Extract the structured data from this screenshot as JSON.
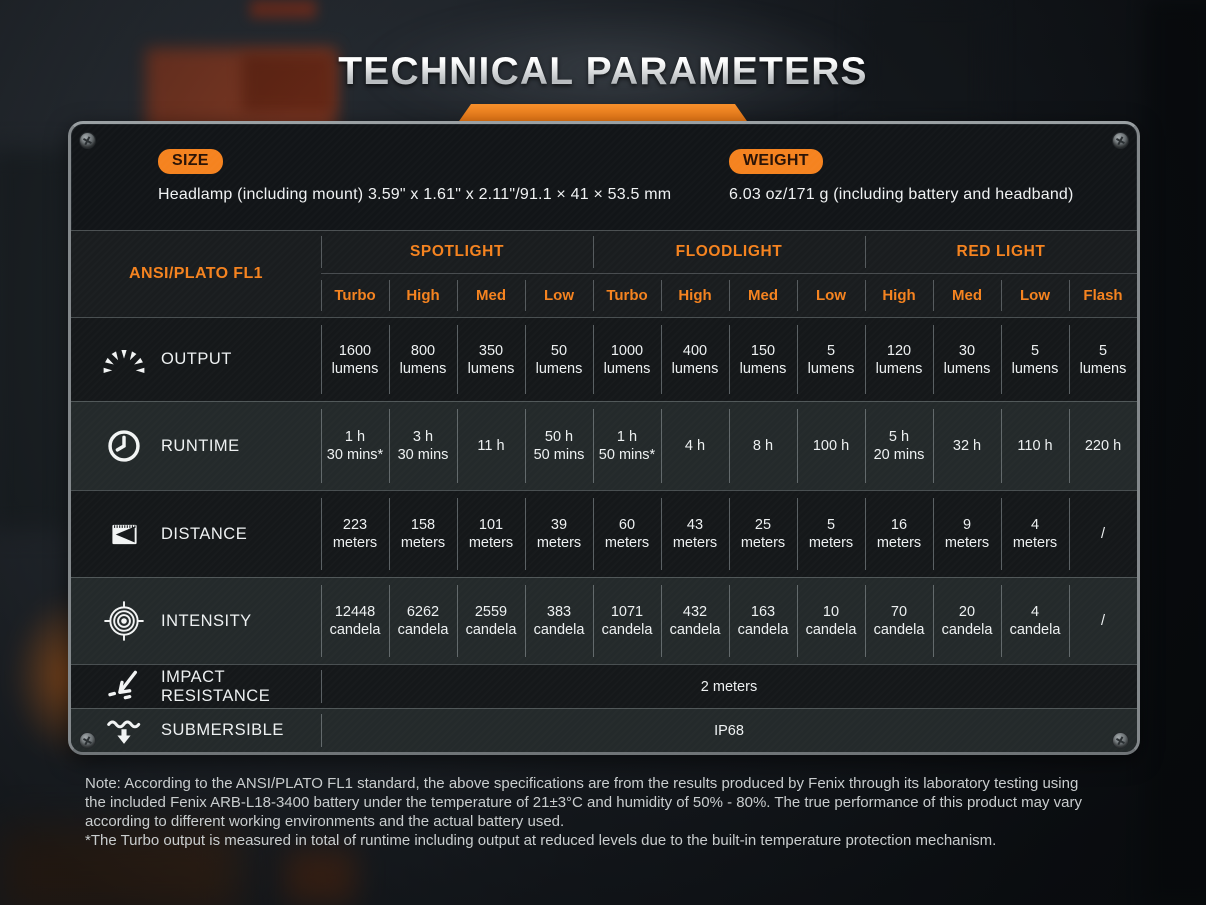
{
  "title": "TECHNICAL PARAMETERS",
  "colors": {
    "accent_orange": "#f5831f",
    "panel_background": "#121518",
    "row_dark": "#15181a",
    "row_light": "#242a2b",
    "text_white": "#eef1f2",
    "note_text": "#c9cdce"
  },
  "specs": {
    "size": {
      "badge": "SIZE",
      "text": "Headlamp (including mount)  3.59\" x 1.61\" x 2.11\"/91.1 × 41 × 53.5 mm"
    },
    "weight": {
      "badge": "WEIGHT",
      "text": "6.03 oz/171 g (including battery and headband)"
    }
  },
  "table": {
    "corner_label": "ANSI/PLATO FL1",
    "groups": [
      {
        "label": "SPOTLIGHT",
        "modes": [
          "Turbo",
          "High",
          "Med",
          "Low"
        ]
      },
      {
        "label": "FLOODLIGHT",
        "modes": [
          "Turbo",
          "High",
          "Med",
          "Low"
        ]
      },
      {
        "label": "RED LIGHT",
        "modes": [
          "High",
          "Med",
          "Low",
          "Flash"
        ]
      }
    ],
    "rows": [
      {
        "icon": "output-icon",
        "label": "OUTPUT",
        "cells": [
          [
            "1600",
            "lumens"
          ],
          [
            "800",
            "lumens"
          ],
          [
            "350",
            "lumens"
          ],
          [
            "50",
            "lumens"
          ],
          [
            "1000",
            "lumens"
          ],
          [
            "400",
            "lumens"
          ],
          [
            "150",
            "lumens"
          ],
          [
            "5",
            "lumens"
          ],
          [
            "120",
            "lumens"
          ],
          [
            "30",
            "lumens"
          ],
          [
            "5",
            "lumens"
          ],
          [
            "5",
            "lumens"
          ]
        ]
      },
      {
        "icon": "runtime-icon",
        "label": "RUNTIME",
        "cells": [
          [
            "1 h",
            "30 mins*"
          ],
          [
            "3 h",
            "30 mins"
          ],
          [
            "11 h"
          ],
          [
            "50 h",
            "50 mins"
          ],
          [
            "1 h",
            "50 mins*"
          ],
          [
            "4 h"
          ],
          [
            "8 h"
          ],
          [
            "100 h"
          ],
          [
            "5 h",
            "20 mins"
          ],
          [
            "32 h"
          ],
          [
            "110 h"
          ],
          [
            "220 h"
          ]
        ]
      },
      {
        "icon": "distance-icon",
        "label": "DISTANCE",
        "cells": [
          [
            "223",
            "meters"
          ],
          [
            "158",
            "meters"
          ],
          [
            "101",
            "meters"
          ],
          [
            "39",
            "meters"
          ],
          [
            "60",
            "meters"
          ],
          [
            "43",
            "meters"
          ],
          [
            "25",
            "meters"
          ],
          [
            "5",
            "meters"
          ],
          [
            "16",
            "meters"
          ],
          [
            "9",
            "meters"
          ],
          [
            "4",
            "meters"
          ],
          [
            "/"
          ]
        ]
      },
      {
        "icon": "intensity-icon",
        "label": "INTENSITY",
        "cells": [
          [
            "12448",
            "candela"
          ],
          [
            "6262",
            "candela"
          ],
          [
            "2559",
            "candela"
          ],
          [
            "383",
            "candela"
          ],
          [
            "1071",
            "candela"
          ],
          [
            "432",
            "candela"
          ],
          [
            "163",
            "candela"
          ],
          [
            "10",
            "candela"
          ],
          [
            "70",
            "candela"
          ],
          [
            "20",
            "candela"
          ],
          [
            "4",
            "candela"
          ],
          [
            "/"
          ]
        ]
      }
    ],
    "summary_rows": [
      {
        "icon": "impact-icon",
        "label": "IMPACT RESISTANCE",
        "value": "2 meters"
      },
      {
        "icon": "submersible-icon",
        "label": "SUBMERSIBLE",
        "value": "IP68"
      }
    ]
  },
  "notes": [
    "Note: According to the ANSI/PLATO FL1 standard, the above specifications are from the results produced by Fenix through its laboratory testing using",
    "the included Fenix ARB-L18-3400 battery under the temperature of 21±3°C and humidity of 50% - 80%. The true performance of this product may vary",
    "according to different working environments and the actual battery used.",
    "*The Turbo output is measured in total of runtime including output at reduced levels due to the built-in temperature protection mechanism."
  ]
}
